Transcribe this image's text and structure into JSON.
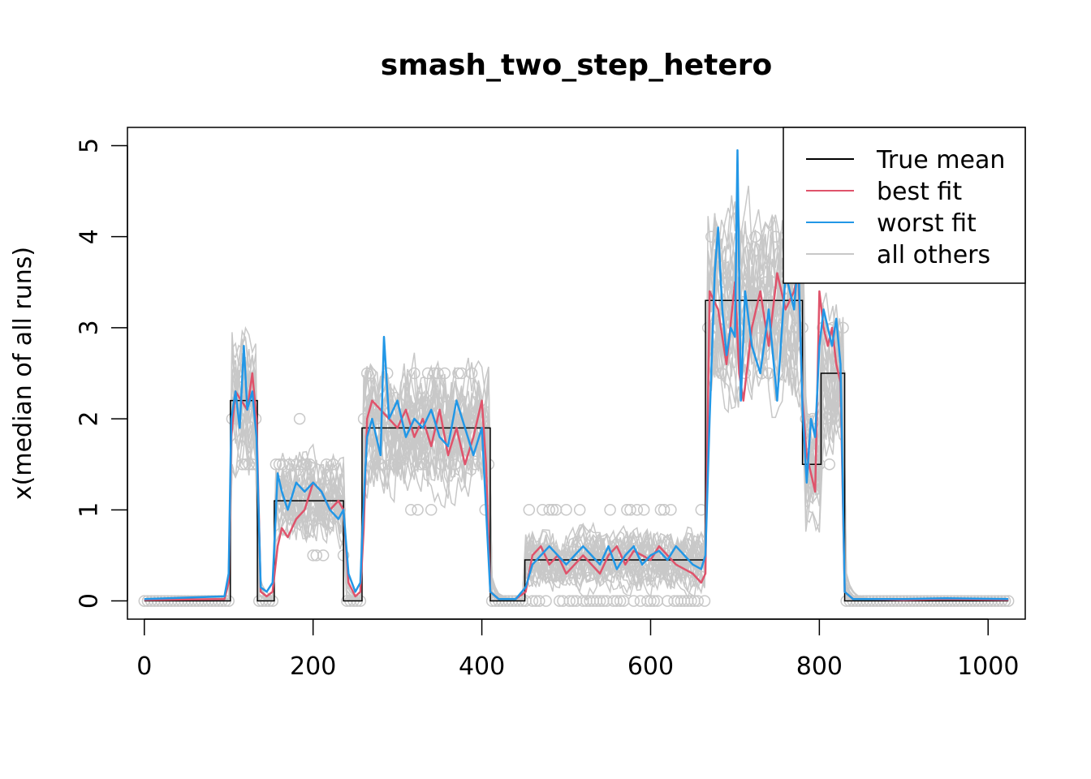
{
  "chart_data": {
    "type": "line",
    "title": "smash_two_step_hetero",
    "xlabel": "",
    "ylabel": "x(median of all runs)",
    "xlim": [
      -20,
      1044
    ],
    "ylim": [
      -0.2,
      5.2
    ],
    "x_ticks": [
      0,
      200,
      400,
      600,
      800,
      1000
    ],
    "y_ticks": [
      0,
      1,
      2,
      3,
      4,
      5
    ],
    "x_tick_labels": [
      "0",
      "200",
      "400",
      "600",
      "800",
      "1000"
    ],
    "y_tick_labels": [
      "0",
      "1",
      "2",
      "3",
      "4",
      "5"
    ],
    "legend": {
      "placement": "top-right",
      "entries": [
        {
          "name": "True mean",
          "color": "#000000"
        },
        {
          "name": "best fit",
          "color": "#DF536B"
        },
        {
          "name": "worst fit",
          "color": "#2297E6"
        },
        {
          "name": "all others",
          "color": "#C8C8C8"
        }
      ]
    },
    "true_mean_segments": [
      {
        "from": 0,
        "to": 102,
        "y": 0
      },
      {
        "from": 102,
        "to": 134,
        "y": 2.2
      },
      {
        "from": 134,
        "to": 154,
        "y": 0
      },
      {
        "from": 154,
        "to": 236,
        "y": 1.1
      },
      {
        "from": 236,
        "to": 258,
        "y": 0
      },
      {
        "from": 258,
        "to": 410,
        "y": 1.9
      },
      {
        "from": 410,
        "to": 451,
        "y": 0
      },
      {
        "from": 451,
        "to": 665,
        "y": 0.45
      },
      {
        "from": 665,
        "to": 780,
        "y": 3.3
      },
      {
        "from": 780,
        "to": 802,
        "y": 1.5
      },
      {
        "from": 802,
        "to": 830,
        "y": 2.5
      },
      {
        "from": 830,
        "to": 1024,
        "y": 0
      }
    ],
    "series": [
      {
        "name": "best fit",
        "color": "#DF536B",
        "x": [
          0,
          95,
          100,
          103,
          108,
          115,
          122,
          128,
          133,
          138,
          145,
          152,
          158,
          163,
          170,
          180,
          190,
          200,
          210,
          220,
          230,
          236,
          242,
          250,
          256,
          260,
          264,
          270,
          280,
          290,
          300,
          310,
          320,
          330,
          340,
          350,
          360,
          370,
          380,
          390,
          400,
          405,
          410,
          420,
          440,
          452,
          460,
          470,
          480,
          490,
          500,
          510,
          520,
          530,
          540,
          550,
          560,
          570,
          580,
          590,
          600,
          610,
          620,
          630,
          640,
          650,
          660,
          665,
          670,
          680,
          690,
          700,
          705,
          710,
          720,
          730,
          740,
          750,
          760,
          770,
          775,
          780,
          785,
          790,
          795,
          800,
          805,
          810,
          815,
          820,
          825,
          830,
          840,
          860,
          900,
          950,
          1024
        ],
        "y": [
          0.01,
          0.02,
          0.2,
          1.8,
          2.3,
          2.2,
          2.1,
          2.5,
          2.0,
          0.1,
          0.05,
          0.1,
          0.6,
          0.8,
          0.7,
          0.9,
          1.0,
          1.3,
          1.2,
          1.0,
          1.1,
          1.0,
          0.2,
          0.05,
          0.1,
          0.8,
          2.0,
          2.2,
          2.1,
          2.0,
          1.9,
          2.1,
          1.8,
          2.0,
          1.7,
          2.1,
          1.6,
          1.9,
          1.5,
          1.8,
          2.2,
          1.5,
          0.1,
          0.02,
          0.02,
          0.1,
          0.5,
          0.6,
          0.4,
          0.5,
          0.3,
          0.4,
          0.5,
          0.4,
          0.3,
          0.5,
          0.6,
          0.4,
          0.55,
          0.5,
          0.45,
          0.6,
          0.5,
          0.4,
          0.35,
          0.3,
          0.2,
          0.3,
          3.4,
          3.2,
          2.6,
          3.5,
          2.5,
          2.2,
          3.0,
          3.4,
          2.8,
          3.6,
          3.2,
          3.4,
          3.6,
          2.2,
          1.6,
          1.4,
          1.2,
          3.4,
          3.0,
          2.8,
          3.0,
          2.6,
          2.4,
          0.1,
          0.02,
          0.02,
          0.01,
          0.02,
          0.01
        ]
      },
      {
        "name": "worst fit",
        "color": "#2297E6",
        "x": [
          0,
          95,
          100,
          103,
          108,
          113,
          118,
          122,
          128,
          133,
          138,
          145,
          152,
          158,
          163,
          170,
          180,
          190,
          200,
          210,
          220,
          230,
          236,
          242,
          250,
          256,
          260,
          264,
          270,
          280,
          284,
          290,
          300,
          310,
          320,
          330,
          340,
          350,
          360,
          370,
          380,
          390,
          400,
          405,
          410,
          420,
          440,
          452,
          460,
          470,
          480,
          490,
          500,
          510,
          520,
          530,
          540,
          550,
          560,
          570,
          580,
          590,
          600,
          610,
          620,
          630,
          640,
          650,
          660,
          665,
          670,
          676,
          680,
          685,
          690,
          695,
          700,
          703,
          707,
          712,
          720,
          730,
          740,
          750,
          760,
          770,
          775,
          780,
          785,
          790,
          795,
          800,
          805,
          810,
          815,
          820,
          825,
          830,
          840,
          860,
          900,
          950,
          1024
        ],
        "y": [
          0.02,
          0.05,
          0.3,
          2.0,
          2.3,
          1.9,
          2.8,
          2.1,
          2.3,
          1.8,
          0.15,
          0.1,
          0.2,
          1.4,
          1.2,
          1.0,
          1.3,
          1.2,
          1.3,
          1.2,
          1.0,
          0.9,
          1.0,
          0.3,
          0.1,
          0.2,
          1.1,
          1.8,
          2.0,
          1.6,
          2.9,
          2.0,
          2.2,
          1.8,
          2.0,
          1.9,
          2.1,
          1.8,
          1.7,
          2.2,
          1.9,
          1.6,
          1.9,
          1.0,
          0.1,
          0.02,
          0.02,
          0.15,
          0.4,
          0.5,
          0.6,
          0.5,
          0.4,
          0.5,
          0.6,
          0.5,
          0.4,
          0.6,
          0.35,
          0.5,
          0.6,
          0.4,
          0.5,
          0.55,
          0.45,
          0.6,
          0.5,
          0.4,
          0.35,
          0.5,
          2.0,
          3.6,
          4.1,
          3.2,
          2.7,
          3.0,
          2.9,
          4.95,
          2.2,
          3.4,
          2.8,
          2.5,
          3.2,
          2.2,
          3.6,
          3.2,
          3.8,
          2.1,
          1.3,
          2.0,
          1.8,
          2.8,
          3.2,
          3.0,
          2.8,
          3.1,
          2.6,
          0.1,
          0.02,
          0.02,
          0.02,
          0.03,
          0.02
        ]
      }
    ],
    "others_count": 28,
    "others_color": "#C8C8C8"
  }
}
